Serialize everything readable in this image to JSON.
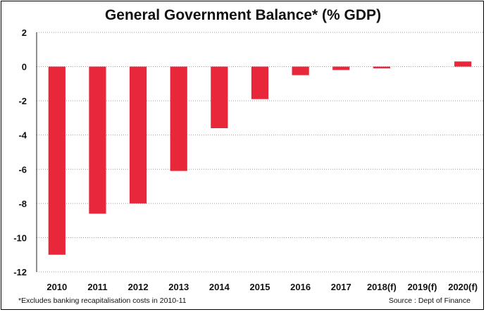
{
  "chart_data": {
    "type": "bar",
    "title": "General Government Balance* (% GDP)",
    "xlabel": "",
    "ylabel": "",
    "categories": [
      "2010",
      "2011",
      "2012",
      "2013",
      "2014",
      "2015",
      "2016",
      "2017",
      "2018(f)",
      "2019(f)",
      "2020(f)"
    ],
    "values": [
      -11.0,
      -8.6,
      -8.0,
      -6.1,
      -3.6,
      -1.9,
      -0.5,
      -0.2,
      -0.1,
      0.0,
      0.3
    ],
    "ylim": [
      -12,
      2
    ],
    "yticks": [
      "2",
      "0",
      "-2",
      "-4",
      "-6",
      "-8",
      "-10",
      "-12"
    ],
    "grid": true,
    "bar_color": "#e8283a"
  },
  "footnote": "*Excludes banking recapitalisation costs in 2010-11",
  "source": "Source : Dept of Finance"
}
